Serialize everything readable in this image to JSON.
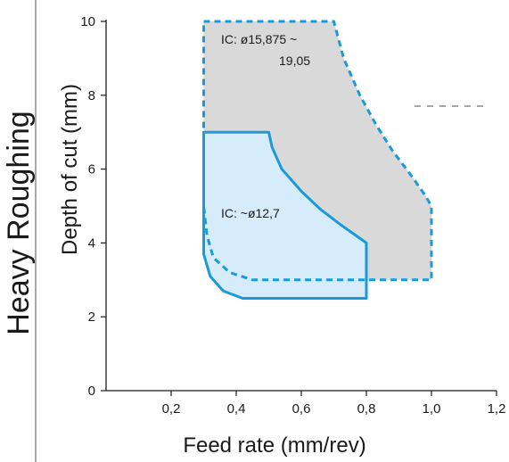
{
  "chart_data": {
    "type": "area",
    "side_title": "Heavy Roughing",
    "xlabel": "Feed rate (mm/rev)",
    "ylabel": "Depth of cut (mm)",
    "xlim": [
      0,
      1.2
    ],
    "ylim": [
      0,
      10
    ],
    "xticks": [
      {
        "value": 0.2,
        "label": "0,2"
      },
      {
        "value": 0.4,
        "label": "0,4"
      },
      {
        "value": 0.6,
        "label": "0,6"
      },
      {
        "value": 0.8,
        "label": "0,8"
      },
      {
        "value": 1.0,
        "label": "1,0"
      },
      {
        "value": 1.2,
        "label": "1,2"
      }
    ],
    "yticks": [
      {
        "value": 0,
        "label": "0"
      },
      {
        "value": 2,
        "label": "2"
      },
      {
        "value": 4,
        "label": "4"
      },
      {
        "value": 6,
        "label": "6"
      },
      {
        "value": 8,
        "label": "8"
      },
      {
        "value": 10,
        "label": "10"
      }
    ],
    "grid": false,
    "series": [
      {
        "name": "IC: ø15,875 ~ 19,05",
        "label_lines": [
          "IC: ø15,875 ~",
          "19,05"
        ],
        "fill": "#d9d9d9",
        "stroke": "#1a9ad9",
        "dashed": true,
        "boundary": [
          [
            0.3,
            10.0
          ],
          [
            0.7,
            10.0
          ],
          [
            0.73,
            9.0
          ],
          [
            0.78,
            8.0
          ],
          [
            0.83,
            7.2
          ],
          [
            0.88,
            6.5
          ],
          [
            0.94,
            5.8
          ],
          [
            0.98,
            5.3
          ],
          [
            1.0,
            5.0
          ],
          [
            1.0,
            3.0
          ],
          [
            0.45,
            3.0
          ],
          [
            0.38,
            3.2
          ],
          [
            0.33,
            3.6
          ],
          [
            0.31,
            4.2
          ],
          [
            0.3,
            5.0
          ]
        ]
      },
      {
        "name": "IC: ~ø12,7",
        "label_lines": [
          "IC: ~ø12,7"
        ],
        "fill": "#d6ecfa",
        "stroke": "#1a9ad9",
        "dashed": false,
        "boundary": [
          [
            0.3,
            7.0
          ],
          [
            0.5,
            7.0
          ],
          [
            0.51,
            6.6
          ],
          [
            0.54,
            6.0
          ],
          [
            0.6,
            5.4
          ],
          [
            0.66,
            4.9
          ],
          [
            0.72,
            4.5
          ],
          [
            0.8,
            4.0
          ],
          [
            0.8,
            2.5
          ],
          [
            0.42,
            2.5
          ],
          [
            0.36,
            2.7
          ],
          [
            0.32,
            3.1
          ],
          [
            0.3,
            3.7
          ]
        ]
      }
    ]
  }
}
